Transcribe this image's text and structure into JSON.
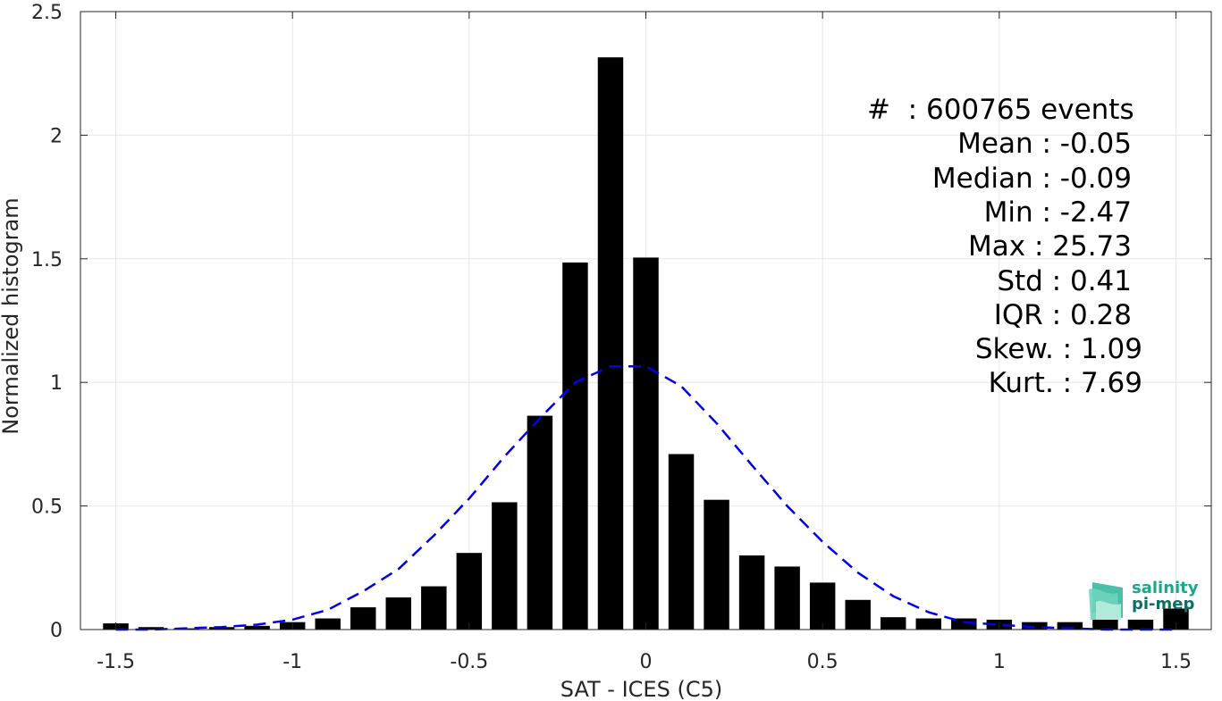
{
  "chart_data": {
    "type": "bar",
    "xlabel": "SAT - ICES (C5)",
    "ylabel": "Normalized histogram",
    "xlim": [
      -1.6,
      1.6
    ],
    "ylim": [
      0,
      2.5
    ],
    "xticks": [
      "-1.5",
      "-1",
      "-0.5",
      "0",
      "0.5",
      "1",
      "1.5"
    ],
    "xtick_values": [
      -1.5,
      -1,
      -0.5,
      0,
      0.5,
      1,
      1.5
    ],
    "yticks": [
      "0",
      "0.5",
      "1",
      "1.5",
      "2",
      "2.5"
    ],
    "ytick_values": [
      0,
      0.5,
      1,
      1.5,
      2,
      2.5
    ],
    "grid": true,
    "bar_centers": [
      -1.5,
      -1.4,
      -1.3,
      -1.2,
      -1.1,
      -1.0,
      -0.9,
      -0.8,
      -0.7,
      -0.6,
      -0.5,
      -0.4,
      -0.3,
      -0.2,
      -0.1,
      0.0,
      0.1,
      0.2,
      0.3,
      0.4,
      0.5,
      0.6,
      0.7,
      0.8,
      0.9,
      1.0,
      1.1,
      1.2,
      1.3,
      1.4,
      1.5
    ],
    "values": [
      0.025,
      0.01,
      0.005,
      0.01,
      0.015,
      0.03,
      0.045,
      0.09,
      0.13,
      0.175,
      0.31,
      0.515,
      0.865,
      1.485,
      2.315,
      1.505,
      0.71,
      0.525,
      0.3,
      0.255,
      0.19,
      0.12,
      0.05,
      0.045,
      0.045,
      0.04,
      0.03,
      0.03,
      0.04,
      0.04,
      0.085
    ],
    "bar_color": "#000000",
    "fit_curve": {
      "style": "dashed",
      "color": "#0000ee",
      "x": [
        -1.5,
        -1.4,
        -1.3,
        -1.2,
        -1.1,
        -1.0,
        -0.9,
        -0.8,
        -0.7,
        -0.6,
        -0.5,
        -0.4,
        -0.3,
        -0.2,
        -0.1,
        0.0,
        0.1,
        0.2,
        0.3,
        0.4,
        0.5,
        0.6,
        0.7,
        0.8,
        0.9,
        1.0,
        1.1,
        1.2,
        1.3,
        1.4,
        1.5
      ],
      "y": [
        0.0,
        0.0,
        0.005,
        0.01,
        0.02,
        0.04,
        0.08,
        0.155,
        0.245,
        0.38,
        0.53,
        0.7,
        0.855,
        1.0,
        1.065,
        1.065,
        0.985,
        0.835,
        0.665,
        0.5,
        0.355,
        0.23,
        0.135,
        0.07,
        0.03,
        0.02,
        0.01,
        0.005,
        0.0,
        0.0,
        0.0
      ]
    }
  },
  "stats": {
    "count": "#  : 600765 events",
    "mean": "Mean : -0.05",
    "median": "Median : -0.09",
    "min": "Min : -2.47",
    "max": "Max : 25.73",
    "std": "Std : 0.41",
    "iqr": "IQR : 0.28",
    "skew": "Skew. : 1.09",
    "kurt": "Kurt. : 7.69"
  },
  "logo": {
    "line1": "salinity",
    "line2": "pi-mep",
    "color1": "#1aa88a",
    "color2": "#0d6e63"
  }
}
